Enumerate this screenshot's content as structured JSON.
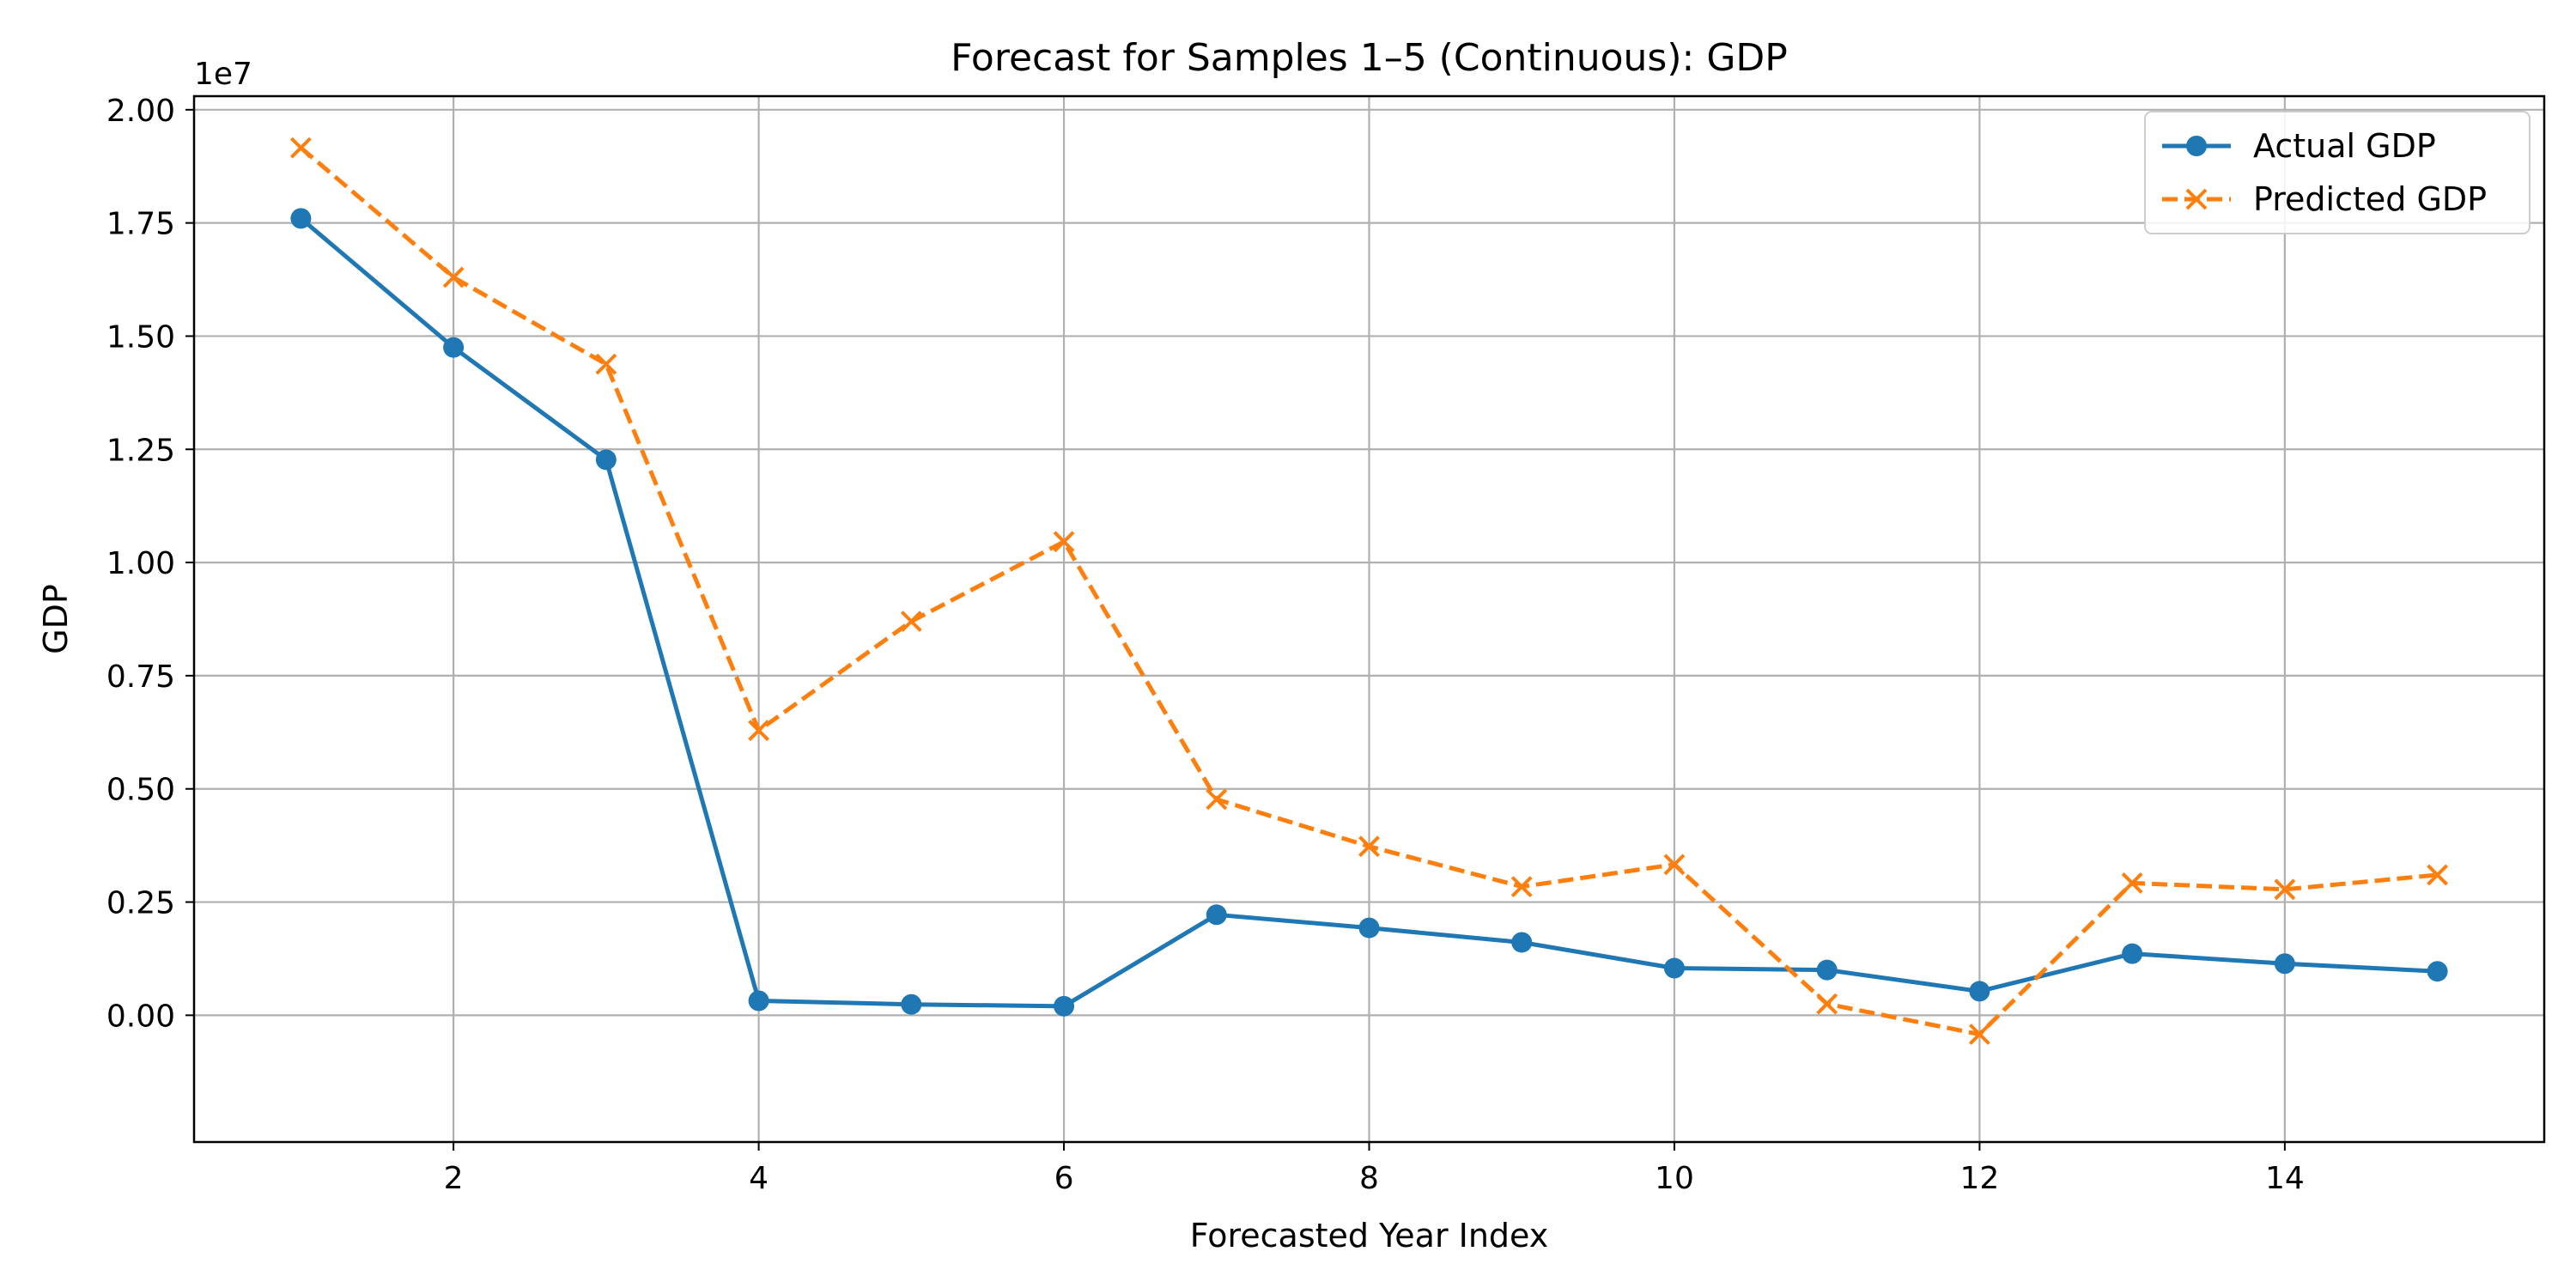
{
  "chart_data": {
    "type": "line",
    "title": "Forecast for Samples 1–5 (Continuous): GDP",
    "xlabel": "Forecasted Year Index",
    "ylabel": "GDP",
    "y_offset_label": "1e7",
    "xlim": [
      0.3,
      15.7
    ],
    "ylim": [
      -2800000,
      20300000
    ],
    "x_ticks": [
      2,
      4,
      6,
      8,
      10,
      12,
      14
    ],
    "x_tick_labels": [
      "2",
      "4",
      "6",
      "8",
      "10",
      "12",
      "14"
    ],
    "y_ticks": [
      0,
      2500000,
      5000000,
      7500000,
      10000000,
      12500000,
      15000000,
      17500000,
      20000000
    ],
    "y_tick_labels": [
      "0.00",
      "0.25",
      "0.50",
      "0.75",
      "1.00",
      "1.25",
      "1.50",
      "1.75",
      "2.00"
    ],
    "grid": true,
    "legend_position": "top-right",
    "x": [
      1,
      2,
      3,
      4,
      5,
      6,
      7,
      8,
      9,
      10,
      11,
      12,
      13,
      14,
      15
    ],
    "series": [
      {
        "name": "Actual GDP",
        "color": "#1f77b4",
        "line_style": "solid",
        "marker": "circle",
        "values": [
          17600000,
          14750000,
          12270000,
          320000,
          240000,
          200000,
          2220000,
          1930000,
          1610000,
          1040000,
          1000000,
          530000,
          1360000,
          1140000,
          970000
        ]
      },
      {
        "name": "Predicted GDP",
        "color": "#ff7f0e",
        "line_style": "dashed",
        "marker": "x",
        "values": [
          19160000,
          16300000,
          14380000,
          6290000,
          8700000,
          10460000,
          4770000,
          3730000,
          2840000,
          3330000,
          250000,
          -420000,
          2920000,
          2780000,
          3100000
        ]
      }
    ]
  }
}
